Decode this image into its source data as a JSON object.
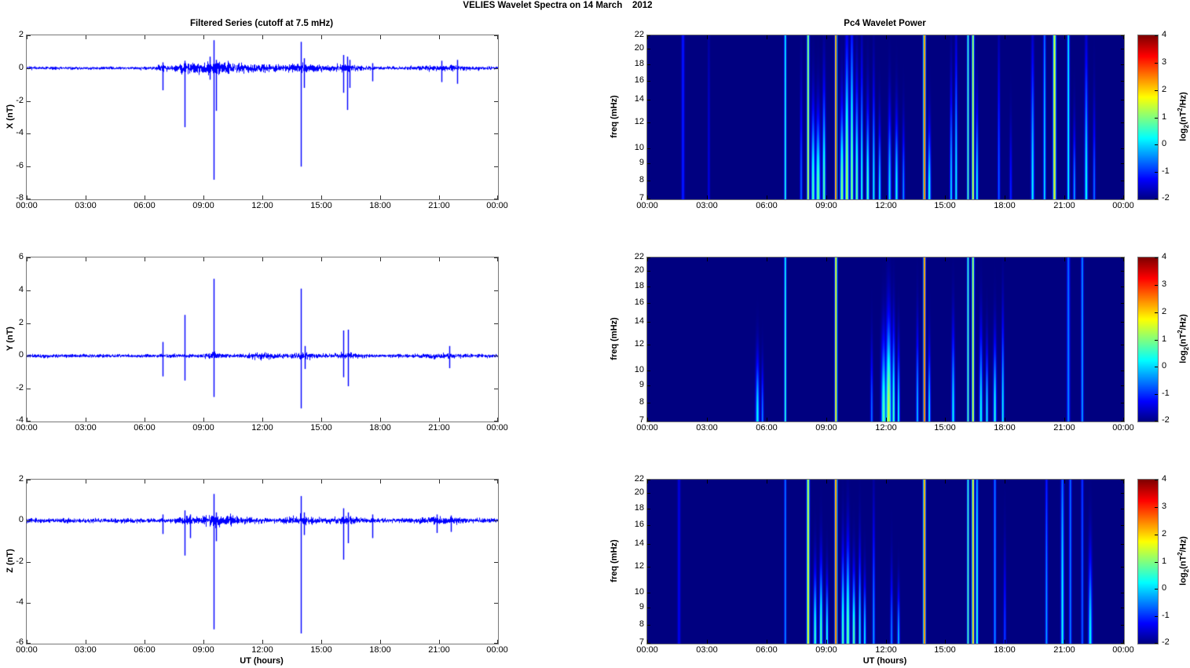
{
  "figure": {
    "title": "VELIES Wavelet Spectra on 14 March    2012",
    "bg_color": "#ffffff",
    "series_color": "#0000ff",
    "heatmap_colormap": "jet",
    "xtick_labels": [
      "00:00",
      "03:00",
      "06:00",
      "09:00",
      "12:00",
      "15:00",
      "18:00",
      "21:00",
      "00:00"
    ],
    "xtick_hours": [
      0,
      3,
      6,
      9,
      12,
      15,
      18,
      21,
      24
    ],
    "x_range_hours": [
      0,
      24
    ]
  },
  "labels": {
    "ut_axis": "UT (hours)",
    "colorbar": {
      "pre": "log",
      "sub": "2",
      "mid": "(nT",
      "sup": "2",
      "post": "/Hz)"
    }
  },
  "chart_data": [
    {
      "id": "ts-x",
      "type": "line",
      "title": "Filtered Series (cutoff at 7.5 mHz)",
      "ylabel": "X (nT)",
      "xlabel": "UT (hours)",
      "ylim": [
        -8,
        2
      ],
      "yticks": [
        2,
        0,
        -2,
        -4,
        -6,
        -8
      ],
      "baseline": 0,
      "noise_base": 0.045,
      "noise_bursts": [
        [
          6.9,
          0.15,
          0.1
        ],
        [
          8.1,
          0.3,
          0.1
        ],
        [
          9.2,
          0.8,
          0.09
        ],
        [
          10.4,
          1.0,
          0.1
        ],
        [
          12.0,
          0.8,
          0.04
        ],
        [
          14.0,
          0.8,
          0.09
        ],
        [
          16.2,
          0.6,
          0.08
        ],
        [
          21.2,
          1.0,
          0.05
        ]
      ],
      "spikes_t_lo_hi": [
        [
          6.9,
          -1.35,
          0.35
        ],
        [
          8.05,
          -3.6,
          0.45
        ],
        [
          9.3,
          -0.7,
          0.7
        ],
        [
          9.5,
          -6.8,
          1.7
        ],
        [
          9.65,
          -2.6,
          0.5
        ],
        [
          13.95,
          -6.0,
          1.6
        ],
        [
          14.1,
          -1.2,
          0.6
        ],
        [
          16.1,
          -1.5,
          0.8
        ],
        [
          16.3,
          -2.55,
          0.7
        ],
        [
          16.45,
          -1.2,
          0.5
        ],
        [
          17.6,
          -0.8,
          0.3
        ],
        [
          21.1,
          -0.85,
          0.45
        ],
        [
          21.9,
          -0.95,
          0.5
        ]
      ]
    },
    {
      "id": "spec-x",
      "type": "heatmap",
      "title": "Pc4 Wavelet Power",
      "ylabel": "freq (mHz)",
      "yscale": "log",
      "ylim_mhz": [
        7,
        22
      ],
      "yticks": [
        22,
        20,
        18,
        16,
        14,
        12,
        10,
        9,
        8,
        7
      ],
      "clim": [
        -2,
        4
      ],
      "colorbar_ticks": [
        4,
        3,
        2,
        1,
        0,
        -1,
        -2
      ],
      "colorbar_label": "log2(nT2/Hz)",
      "streaks_t_peak_ext_sig": [
        [
          1.8,
          -1.0,
          3,
          0.05
        ],
        [
          3.1,
          -1.4,
          1.0,
          0.04
        ],
        [
          6.95,
          0.6,
          3,
          0.035
        ],
        [
          7.75,
          -0.6,
          0.6,
          0.04
        ],
        [
          8.1,
          1.6,
          3,
          0.04
        ],
        [
          8.35,
          0.8,
          0.5,
          0.06
        ],
        [
          8.6,
          1.0,
          0.45,
          0.07
        ],
        [
          8.9,
          0.9,
          0.6,
          0.05
        ],
        [
          9.5,
          3.3,
          4,
          0.035
        ],
        [
          9.8,
          1.2,
          0.5,
          0.06
        ],
        [
          10.05,
          1.5,
          0.8,
          0.06
        ],
        [
          10.3,
          1.3,
          0.9,
          0.05
        ],
        [
          10.55,
          1.0,
          0.6,
          0.05
        ],
        [
          10.8,
          0.6,
          0.7,
          0.04
        ],
        [
          11.1,
          0.8,
          0.5,
          0.05
        ],
        [
          11.4,
          0.4,
          0.6,
          0.04
        ],
        [
          11.7,
          0.3,
          0.4,
          0.04
        ],
        [
          12.2,
          0.2,
          0.5,
          0.05
        ],
        [
          12.55,
          0.4,
          0.45,
          0.05
        ],
        [
          12.9,
          -0.3,
          0.4,
          0.04
        ],
        [
          13.95,
          3.1,
          4,
          0.04
        ],
        [
          14.2,
          0.5,
          0.4,
          0.05
        ],
        [
          15.3,
          0.2,
          0.6,
          0.04
        ],
        [
          15.55,
          0.4,
          0.8,
          0.04
        ],
        [
          16.15,
          0.9,
          3,
          0.035
        ],
        [
          16.4,
          1.8,
          3,
          0.04
        ],
        [
          16.6,
          0.5,
          0.5,
          0.04
        ],
        [
          17.7,
          -0.6,
          0.8,
          0.04
        ],
        [
          18.3,
          -1.0,
          0.4,
          0.04
        ],
        [
          19.4,
          0.3,
          0.8,
          0.05
        ],
        [
          20.0,
          0.2,
          1.5,
          0.04
        ],
        [
          20.5,
          2.0,
          3,
          0.05
        ],
        [
          21.2,
          0.4,
          3,
          0.04
        ],
        [
          21.5,
          -0.2,
          0.4,
          0.04
        ],
        [
          22.1,
          0.4,
          0.8,
          0.05
        ],
        [
          22.5,
          -0.5,
          0.5,
          0.04
        ]
      ]
    },
    {
      "id": "ts-y",
      "type": "line",
      "title": "Filtered Series (cutoff at 7.5 mHz)",
      "ylabel": "Y (nT)",
      "xlabel": "UT (hours)",
      "ylim": [
        -4,
        6
      ],
      "yticks": [
        6,
        4,
        2,
        0,
        -2,
        -4
      ],
      "baseline": 0,
      "noise_base": 0.05,
      "noise_bursts": [
        [
          9.5,
          0.3,
          0.05
        ],
        [
          11.9,
          0.5,
          0.07
        ],
        [
          14.0,
          0.4,
          0.08
        ],
        [
          16.3,
          0.5,
          0.05
        ],
        [
          21.0,
          0.8,
          0.03
        ]
      ],
      "spikes_t_lo_hi": [
        [
          6.9,
          -1.25,
          0.85
        ],
        [
          8.05,
          -1.5,
          2.5
        ],
        [
          9.5,
          -2.5,
          4.7
        ],
        [
          13.95,
          -3.2,
          4.1
        ],
        [
          14.15,
          -0.8,
          0.6
        ],
        [
          16.1,
          -1.3,
          1.55
        ],
        [
          16.35,
          -1.85,
          1.6
        ],
        [
          21.5,
          -0.75,
          0.6
        ]
      ]
    },
    {
      "id": "spec-y",
      "type": "heatmap",
      "title": "Pc4 Wavelet Power",
      "ylabel": "freq (mHz)",
      "yscale": "log",
      "ylim_mhz": [
        7,
        22
      ],
      "yticks": [
        22,
        20,
        18,
        16,
        14,
        12,
        10,
        9,
        8,
        7
      ],
      "clim": [
        -2,
        4
      ],
      "colorbar_ticks": [
        4,
        3,
        2,
        1,
        0,
        -1,
        -2
      ],
      "colorbar_label": "log2(nT2/Hz)",
      "streaks_t_peak_ext_sig": [
        [
          5.55,
          0.3,
          0.35,
          0.06
        ],
        [
          5.8,
          -0.4,
          0.3,
          0.04
        ],
        [
          6.95,
          0.7,
          3,
          0.035
        ],
        [
          9.5,
          2.3,
          4,
          0.04
        ],
        [
          11.3,
          -0.5,
          0.4,
          0.04
        ],
        [
          11.9,
          0.8,
          0.45,
          0.08
        ],
        [
          12.15,
          1.5,
          0.55,
          0.09
        ],
        [
          12.4,
          0.8,
          0.5,
          0.05
        ],
        [
          12.65,
          0.4,
          0.4,
          0.04
        ],
        [
          13.6,
          0.0,
          0.5,
          0.04
        ],
        [
          13.95,
          3.3,
          4,
          0.035
        ],
        [
          14.2,
          0.3,
          0.4,
          0.04
        ],
        [
          15.4,
          0.3,
          0.5,
          0.05
        ],
        [
          16.15,
          0.9,
          3,
          0.035
        ],
        [
          16.4,
          1.8,
          3,
          0.04
        ],
        [
          16.8,
          0.4,
          0.5,
          0.05
        ],
        [
          17.1,
          0.3,
          0.4,
          0.04
        ],
        [
          17.5,
          0.5,
          0.45,
          0.05
        ],
        [
          17.9,
          0.4,
          0.55,
          0.04
        ],
        [
          21.2,
          -0.4,
          2.5,
          0.05
        ],
        [
          21.9,
          -0.2,
          3,
          0.04
        ]
      ]
    },
    {
      "id": "ts-z",
      "type": "line",
      "title": "Filtered Series (cutoff at 7.5 mHz)",
      "ylabel": "Z (nT)",
      "xlabel": "UT (hours)",
      "ylim": [
        -6,
        2
      ],
      "yticks": [
        2,
        0,
        -2,
        -4,
        -6
      ],
      "baseline": 0,
      "noise_base": 0.05,
      "noise_bursts": [
        [
          8.1,
          0.4,
          0.05
        ],
        [
          9.6,
          0.6,
          0.07
        ],
        [
          10.5,
          0.8,
          0.04
        ],
        [
          14.0,
          0.5,
          0.07
        ],
        [
          16.2,
          0.5,
          0.05
        ],
        [
          21.0,
          0.8,
          0.04
        ]
      ],
      "spikes_t_lo_hi": [
        [
          6.9,
          -0.65,
          0.3
        ],
        [
          8.05,
          -1.7,
          0.5
        ],
        [
          8.3,
          -0.85,
          0.3
        ],
        [
          9.5,
          -5.3,
          1.3
        ],
        [
          9.65,
          -1.0,
          0.4
        ],
        [
          13.95,
          -5.5,
          1.2
        ],
        [
          14.1,
          -0.7,
          0.4
        ],
        [
          16.1,
          -1.9,
          0.6
        ],
        [
          16.35,
          -1.1,
          0.4
        ],
        [
          17.6,
          -0.85,
          0.3
        ],
        [
          20.9,
          -0.6,
          0.3
        ],
        [
          21.6,
          -0.55,
          0.25
        ]
      ]
    },
    {
      "id": "spec-z",
      "type": "heatmap",
      "title": "Pc4 Wavelet Power",
      "ylabel": "freq (mHz)",
      "yscale": "log",
      "ylim_mhz": [
        7,
        22
      ],
      "yticks": [
        22,
        20,
        18,
        16,
        14,
        12,
        10,
        9,
        8,
        7
      ],
      "clim": [
        -2,
        4
      ],
      "colorbar_ticks": [
        4,
        3,
        2,
        1,
        0,
        -1,
        -2
      ],
      "colorbar_label": "log2(nT2/Hz)",
      "streaks_t_peak_ext_sig": [
        [
          1.6,
          -1.3,
          2,
          0.05
        ],
        [
          6.95,
          -0.3,
          3,
          0.035
        ],
        [
          8.1,
          1.9,
          3,
          0.045
        ],
        [
          8.45,
          0.7,
          0.4,
          0.05
        ],
        [
          8.75,
          0.9,
          0.45,
          0.05
        ],
        [
          9.05,
          0.6,
          0.35,
          0.04
        ],
        [
          9.5,
          3.3,
          4,
          0.04
        ],
        [
          9.85,
          0.8,
          0.5,
          0.05
        ],
        [
          10.1,
          1.0,
          0.55,
          0.06
        ],
        [
          10.4,
          0.9,
          0.4,
          0.05
        ],
        [
          10.7,
          0.4,
          0.5,
          0.04
        ],
        [
          10.95,
          0.3,
          0.35,
          0.04
        ],
        [
          11.4,
          -0.2,
          0.7,
          0.04
        ],
        [
          12.3,
          -0.4,
          0.4,
          0.04
        ],
        [
          12.65,
          0.0,
          0.3,
          0.04
        ],
        [
          13.95,
          3.0,
          4,
          0.04
        ],
        [
          16.15,
          0.9,
          3,
          0.035
        ],
        [
          16.4,
          2.4,
          3,
          0.04
        ],
        [
          16.6,
          0.8,
          1.5,
          0.04
        ],
        [
          17.5,
          -0.3,
          3,
          0.04
        ],
        [
          18.0,
          -0.8,
          0.5,
          0.04
        ],
        [
          20.1,
          -0.2,
          1.2,
          0.04
        ],
        [
          20.9,
          0.4,
          1.3,
          0.05
        ],
        [
          21.3,
          -0.4,
          3,
          0.04
        ],
        [
          21.9,
          -0.6,
          2,
          0.04
        ],
        [
          22.3,
          0.3,
          0.5,
          0.06
        ]
      ]
    }
  ]
}
